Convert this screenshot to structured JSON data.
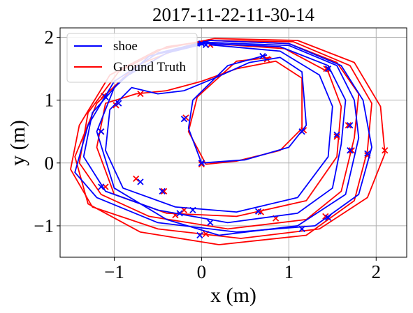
{
  "chart_data": {
    "type": "line",
    "title": "2017-11-22-11-30-14",
    "xlabel": "x (m)",
    "ylabel": "y (m)",
    "xlim": [
      -1.62,
      2.35
    ],
    "ylim": [
      -1.5,
      2.15
    ],
    "xticks": [
      -1,
      0,
      1,
      2
    ],
    "yticks": [
      -1,
      0,
      1,
      2
    ],
    "xtick_labels": [
      "−1",
      "0",
      "1",
      "2"
    ],
    "ytick_labels": [
      "−1",
      "0",
      "1",
      "2"
    ],
    "grid": true,
    "legend_position": "top-left",
    "colors": {
      "shoe": "#0000ff",
      "ground_truth": "#ff0000"
    },
    "series": [
      {
        "name": "shoe",
        "key": "shoe",
        "marker": "x",
        "loops": [
          [
            [
              0.05,
              1.9
            ],
            [
              0.9,
              1.85
            ],
            [
              1.45,
              1.55
            ],
            [
              1.65,
              1.0
            ],
            [
              1.6,
              0.3
            ],
            [
              1.5,
              -0.4
            ],
            [
              1.1,
              -0.8
            ],
            [
              0.3,
              -0.95
            ],
            [
              -0.5,
              -0.75
            ],
            [
              -1.1,
              -0.45
            ],
            [
              -1.35,
              0.1
            ],
            [
              -1.25,
              0.8
            ],
            [
              -0.9,
              1.35
            ],
            [
              -0.4,
              1.75
            ],
            [
              0.05,
              1.9
            ]
          ],
          [
            [
              0.1,
              1.95
            ],
            [
              1.0,
              1.9
            ],
            [
              1.6,
              1.55
            ],
            [
              1.85,
              1.0
            ],
            [
              1.95,
              0.25
            ],
            [
              1.8,
              -0.5
            ],
            [
              1.3,
              -1.0
            ],
            [
              0.4,
              -1.1
            ],
            [
              -0.5,
              -0.95
            ],
            [
              -1.2,
              -0.55
            ],
            [
              -1.45,
              -0.15
            ],
            [
              -1.3,
              0.6
            ],
            [
              -1.0,
              1.3
            ],
            [
              -0.5,
              1.75
            ],
            [
              0.1,
              1.95
            ]
          ],
          [
            [
              0.05,
              1.92
            ],
            [
              1.0,
              1.87
            ],
            [
              1.55,
              1.55
            ],
            [
              1.75,
              1.0
            ],
            [
              1.8,
              0.4
            ],
            [
              1.65,
              -0.5
            ],
            [
              1.1,
              -1.0
            ],
            [
              0.2,
              -1.15
            ],
            [
              -0.4,
              -0.9
            ],
            [
              -1.0,
              -0.4
            ],
            [
              -1.2,
              0.5
            ],
            [
              -1.0,
              1.2
            ],
            [
              -0.6,
              1.7
            ],
            [
              0.05,
              1.92
            ]
          ],
          [
            [
              0.1,
              1.88
            ],
            [
              0.9,
              1.78
            ],
            [
              1.35,
              1.4
            ],
            [
              1.5,
              0.9
            ],
            [
              1.45,
              0.1
            ],
            [
              1.1,
              -0.55
            ],
            [
              0.4,
              -0.78
            ],
            [
              -0.3,
              -0.7
            ],
            [
              -0.9,
              -0.4
            ],
            [
              -1.1,
              0.2
            ],
            [
              -1.05,
              0.85
            ],
            [
              -0.8,
              1.2
            ],
            [
              -0.5,
              1.1
            ],
            [
              -0.2,
              1.15
            ],
            [
              0.15,
              1.35
            ],
            [
              0.55,
              1.6
            ],
            [
              0.9,
              1.68
            ],
            [
              1.15,
              1.45
            ],
            [
              1.2,
              0.6
            ],
            [
              1.0,
              0.25
            ],
            [
              0.5,
              0.05
            ],
            [
              0.0,
              0.0
            ],
            [
              -0.15,
              0.55
            ],
            [
              -0.1,
              1.0
            ],
            [
              0.3,
              1.55
            ],
            [
              0.75,
              1.72
            ]
          ]
        ],
        "marks": [
          [
            -1.15,
            0.5
          ],
          [
            -0.95,
            0.95
          ],
          [
            -1.1,
            1.05
          ],
          [
            0.0,
            1.9
          ],
          [
            0.05,
            1.88
          ],
          [
            0.7,
            1.7
          ],
          [
            1.45,
            1.5
          ],
          [
            1.55,
            0.45
          ],
          [
            1.7,
            0.6
          ],
          [
            1.7,
            0.2
          ],
          [
            1.9,
            0.15
          ],
          [
            1.15,
            0.5
          ],
          [
            0.0,
            0.0
          ],
          [
            -0.2,
            0.7
          ],
          [
            1.45,
            -0.87
          ],
          [
            1.15,
            -1.05
          ],
          [
            0.65,
            -0.77
          ],
          [
            0.1,
            -0.95
          ],
          [
            -0.1,
            -0.75
          ],
          [
            -0.25,
            -0.8
          ],
          [
            -0.45,
            -0.45
          ],
          [
            -0.7,
            -0.3
          ],
          [
            -1.15,
            -0.38
          ],
          [
            -0.02,
            -1.15
          ]
        ]
      },
      {
        "name": "Ground Truth",
        "key": "ground_truth",
        "marker": "x",
        "loops": [
          [
            [
              0.1,
              1.95
            ],
            [
              1.0,
              1.9
            ],
            [
              1.55,
              1.6
            ],
            [
              1.8,
              1.1
            ],
            [
              1.75,
              0.4
            ],
            [
              1.6,
              -0.45
            ],
            [
              1.2,
              -0.9
            ],
            [
              0.3,
              -1.05
            ],
            [
              -0.6,
              -0.85
            ],
            [
              -1.15,
              -0.5
            ],
            [
              -1.4,
              0.0
            ],
            [
              -1.3,
              0.8
            ],
            [
              -0.95,
              1.45
            ],
            [
              -0.4,
              1.85
            ],
            [
              0.1,
              1.95
            ]
          ],
          [
            [
              0.15,
              1.98
            ],
            [
              1.1,
              1.95
            ],
            [
              1.75,
              1.6
            ],
            [
              2.05,
              0.9
            ],
            [
              2.1,
              0.15
            ],
            [
              1.9,
              -0.55
            ],
            [
              1.35,
              -1.05
            ],
            [
              0.45,
              -1.2
            ],
            [
              -0.5,
              -1.05
            ],
            [
              -1.25,
              -0.7
            ],
            [
              -1.5,
              -0.1
            ],
            [
              -1.4,
              0.6
            ],
            [
              -1.05,
              1.4
            ],
            [
              -0.5,
              1.8
            ],
            [
              0.15,
              1.98
            ]
          ],
          [
            [
              0.05,
              1.95
            ],
            [
              1.05,
              1.93
            ],
            [
              1.7,
              1.55
            ],
            [
              1.95,
              0.95
            ],
            [
              1.9,
              0.2
            ],
            [
              1.75,
              -0.6
            ],
            [
              1.2,
              -1.15
            ],
            [
              0.2,
              -1.3
            ],
            [
              -0.7,
              -1.1
            ],
            [
              -1.3,
              -0.65
            ],
            [
              -1.45,
              0.1
            ],
            [
              -1.2,
              0.95
            ],
            [
              -0.75,
              1.55
            ],
            [
              -0.2,
              1.85
            ],
            [
              0.05,
              1.95
            ]
          ],
          [
            [
              0.1,
              1.9
            ],
            [
              0.95,
              1.82
            ],
            [
              1.45,
              1.45
            ],
            [
              1.6,
              0.9
            ],
            [
              1.55,
              0.1
            ],
            [
              1.2,
              -0.6
            ],
            [
              0.4,
              -0.85
            ],
            [
              -0.4,
              -0.8
            ],
            [
              -1.0,
              -0.5
            ],
            [
              -1.2,
              0.25
            ],
            [
              -1.1,
              0.95
            ],
            [
              -0.75,
              1.1
            ],
            [
              -0.4,
              1.15
            ],
            [
              0.0,
              1.3
            ],
            [
              0.4,
              1.5
            ],
            [
              0.85,
              1.62
            ],
            [
              1.15,
              1.35
            ],
            [
              1.15,
              0.55
            ],
            [
              0.9,
              0.2
            ],
            [
              0.4,
              0.03
            ],
            [
              0.05,
              -0.02
            ],
            [
              -0.15,
              0.5
            ],
            [
              -0.05,
              1.05
            ],
            [
              0.4,
              1.62
            ],
            [
              0.8,
              1.68
            ]
          ]
        ],
        "marks": [
          [
            -1.15,
            0.5
          ],
          [
            -0.98,
            0.92
          ],
          [
            -1.12,
            1.07
          ],
          [
            -0.7,
            1.1
          ],
          [
            0.1,
            1.88
          ],
          [
            0.75,
            1.65
          ],
          [
            1.43,
            1.5
          ],
          [
            1.68,
            0.6
          ],
          [
            1.72,
            0.2
          ],
          [
            1.9,
            0.12
          ],
          [
            2.1,
            0.2
          ],
          [
            1.17,
            0.52
          ],
          [
            0.0,
            -0.02
          ],
          [
            -0.18,
            0.72
          ],
          [
            1.42,
            -0.85
          ],
          [
            0.85,
            -0.88
          ],
          [
            0.68,
            -0.78
          ],
          [
            0.05,
            -1.13
          ],
          [
            -0.2,
            -0.75
          ],
          [
            -0.3,
            -0.83
          ],
          [
            -0.43,
            -0.45
          ],
          [
            -0.75,
            -0.25
          ],
          [
            -1.1,
            -0.38
          ],
          [
            1.55,
            0.42
          ]
        ]
      }
    ]
  },
  "legend": {
    "shoe_label": "shoe",
    "gt_label": "Ground Truth"
  }
}
